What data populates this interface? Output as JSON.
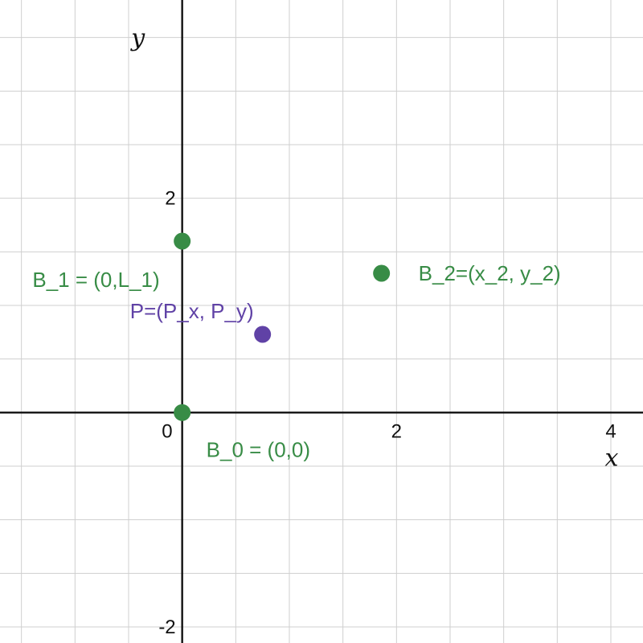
{
  "chart_data": {
    "type": "scatter",
    "title": "",
    "xlabel": "x",
    "ylabel": "y",
    "xlim": [
      -1.7,
      4.3
    ],
    "ylim": [
      -2.15,
      3.85
    ],
    "grid": true,
    "minor_step": 0.5,
    "x_ticks": [
      {
        "value": 0,
        "label": "0"
      },
      {
        "value": 2,
        "label": "2"
      },
      {
        "value": 4,
        "label": "4"
      }
    ],
    "y_ticks": [
      {
        "value": 2,
        "label": "2"
      },
      {
        "value": -2,
        "label": "-2"
      }
    ],
    "points": [
      {
        "x": 0,
        "y": 0,
        "label": "B_0 = (0,0)",
        "color": "#388c46"
      },
      {
        "x": 0,
        "y": 1.6,
        "label": "B_1 = (0,L_1)",
        "color": "#388c46"
      },
      {
        "x": 1.86,
        "y": 1.3,
        "label": "B_2=(x_2, y_2)",
        "color": "#388c46"
      },
      {
        "x": 0.75,
        "y": 0.73,
        "label": "P=(P_x, P_y)",
        "color": "#6042a6"
      }
    ]
  }
}
